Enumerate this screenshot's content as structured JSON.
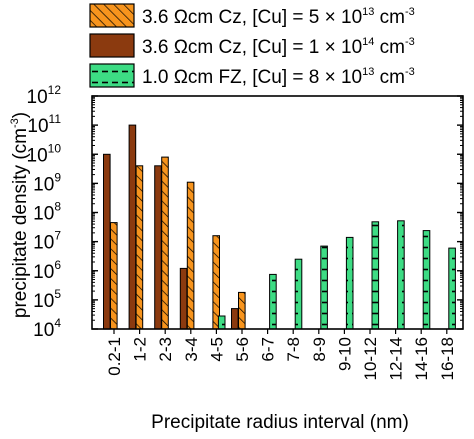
{
  "chart_data": {
    "type": "bar",
    "title": "",
    "xlabel": "Precipitate radius interval (nm)",
    "ylabel_main": "precipitate density (cm",
    "ylabel_exp": "-3",
    "ylabel_close": ")",
    "yscale": "log",
    "ylim": [
      10000,
      1000000000000
    ],
    "y_ticks": [
      {
        "value": 10000,
        "base": "10",
        "exp": "4"
      },
      {
        "value": 100000,
        "base": "10",
        "exp": "5"
      },
      {
        "value": 1000000,
        "base": "10",
        "exp": "6"
      },
      {
        "value": 10000000,
        "base": "10",
        "exp": "7"
      },
      {
        "value": 100000000,
        "base": "10",
        "exp": "8"
      },
      {
        "value": 1000000000,
        "base": "10",
        "exp": "9"
      },
      {
        "value": 10000000000,
        "base": "10",
        "exp": "10"
      },
      {
        "value": 100000000000,
        "base": "10",
        "exp": "11"
      },
      {
        "value": 1000000000000,
        "base": "10",
        "exp": "12"
      }
    ],
    "categories": [
      "0.2-1",
      "1-2",
      "2-3",
      "3-4",
      "4-5",
      "5-6",
      "6-7",
      "7-8",
      "8-9",
      "9-10",
      "10-12",
      "12-14",
      "14-16",
      "16-18"
    ],
    "grid": false,
    "legend_position": "top",
    "series": [
      {
        "name": "3.6 Ωcm Cz, [Cu] = 5 × 10",
        "name_exp": "13",
        "name_unit": " cm",
        "name_unit_exp": "-3",
        "color": "#F7941D",
        "pattern": "diagonal-hatch",
        "values": [
          45000000,
          4000000000,
          8000000000,
          1100000000,
          16000000,
          180000,
          null,
          null,
          null,
          null,
          null,
          null,
          null,
          null
        ]
      },
      {
        "name": "3.6 Ωcm Cz, [Cu] = 1 × 10",
        "name_exp": "14",
        "name_unit": " cm",
        "name_unit_exp": "-3",
        "color": "#8B3A0F",
        "pattern": "solid",
        "values": [
          10000000000,
          100000000000,
          4000000000,
          1200000,
          null,
          50000,
          null,
          null,
          null,
          null,
          null,
          null,
          null,
          null
        ]
      },
      {
        "name": "1.0 Ωcm FZ, [Cu] = 8 × 10",
        "name_exp": "13",
        "name_unit": " cm",
        "name_unit_exp": "-3",
        "color": "#3DDC84",
        "pattern": "horizontal-dash",
        "values": [
          null,
          null,
          null,
          null,
          28000,
          null,
          750000,
          2500000,
          7000000,
          14000000,
          48000000,
          52000000,
          24000000,
          6000000
        ]
      }
    ]
  }
}
